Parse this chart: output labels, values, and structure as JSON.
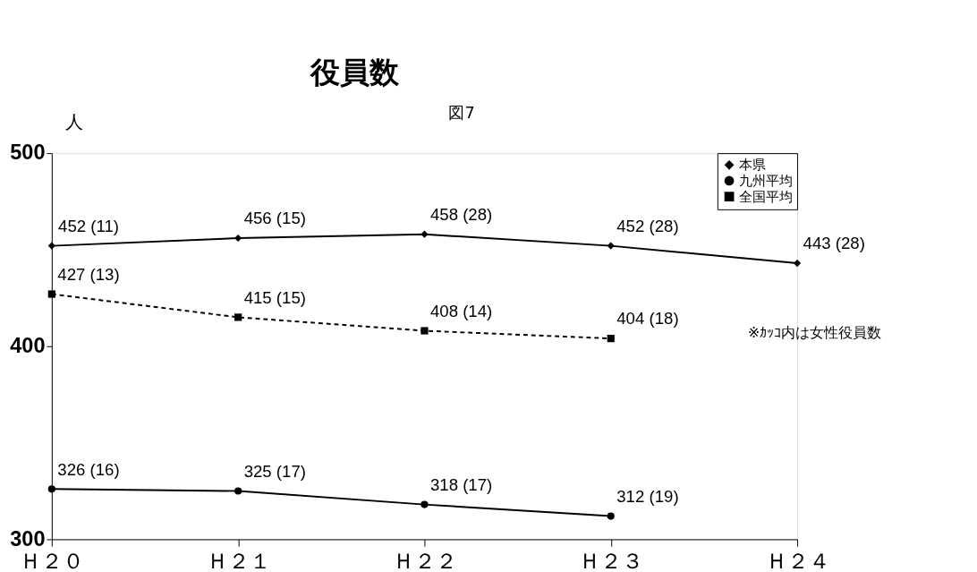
{
  "chart_data": {
    "type": "line",
    "title": "役員数",
    "ylabel": "人",
    "categories": [
      "Ｈ２０",
      "Ｈ２１",
      "Ｈ２２",
      "Ｈ２３",
      "Ｈ２４"
    ],
    "ylim": [
      300,
      500
    ],
    "yticks": [
      300,
      400,
      500
    ],
    "grid": false,
    "legend": "top right",
    "annotations": [
      "図7",
      "※ｶｯｺ内は女性役員数"
    ],
    "series": [
      {
        "name": "本県",
        "color": "#000000",
        "marker": "diamond",
        "line_style": "solid",
        "values": [
          452,
          456,
          458,
          452,
          443
        ],
        "value_labels": [
          "452 (11)",
          "456 (15)",
          "458 (28)",
          "452 (28)",
          "443 (28)"
        ]
      },
      {
        "name": "九州平均",
        "color": "#000000",
        "marker": "circle",
        "line_style": "solid",
        "values": [
          326,
          325,
          318,
          312,
          null
        ],
        "value_labels": [
          "326 (16)",
          "325 (17)",
          "318 (17)",
          "312 (19)",
          null
        ]
      },
      {
        "name": "全国平均",
        "color": "#000000",
        "marker": "square",
        "line_style": "dashed",
        "values": [
          427,
          415,
          408,
          404,
          null
        ],
        "value_labels": [
          "427 (13)",
          "415 (15)",
          "408 (14)",
          "404 (18)",
          null
        ]
      }
    ]
  }
}
